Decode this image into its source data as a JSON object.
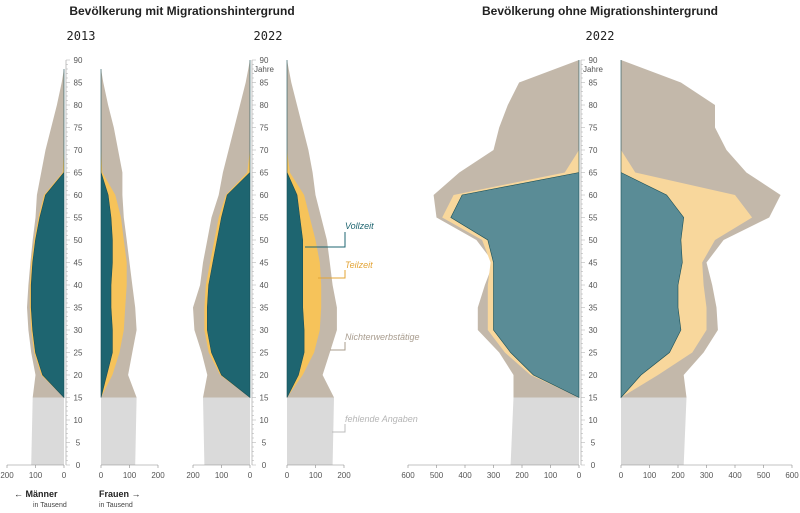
{
  "titles": {
    "left": "Bevölkerung mit Migrationshintergrund",
    "right": "Bevölkerung ohne Migrationshintergrund"
  },
  "legend": {
    "vollzeit": "Vollzeit",
    "teilzeit": "Teilzeit",
    "nichterwerb": "Nichterwerbstätige",
    "fehlend": "fehlende Angaben"
  },
  "age_unit": "Jahre",
  "sex_labels": {
    "male": "← Männer",
    "female": "Frauen →",
    "unit": "in Tausend"
  },
  "colors": {
    "vollzeit_left": "#1e6570",
    "vollzeit_right": "#5a8c96",
    "teilzeit_left": "#f6c35a",
    "teilzeit_right": "#f8d79c",
    "nichterwerb": "#c3b8aa",
    "fehlend": "#dadada"
  },
  "chart_data": [
    {
      "type": "area",
      "year": "2013",
      "age_ticks": [
        0,
        5,
        10,
        15,
        20,
        25,
        30,
        35,
        40,
        45,
        50,
        55,
        60,
        65,
        70,
        75,
        80,
        85,
        90
      ],
      "male_ticks": [
        200,
        100,
        0
      ],
      "female_ticks": [
        0,
        100,
        200
      ],
      "male": {
        "age": [
          0,
          15,
          20,
          25,
          30,
          35,
          40,
          45,
          50,
          55,
          60,
          65,
          70,
          75,
          80,
          85,
          88
        ],
        "vollzeit": [
          0,
          0,
          75,
          100,
          110,
          115,
          115,
          110,
          100,
          85,
          65,
          0,
          0,
          0,
          0,
          0,
          0
        ],
        "teilzeit": [
          0,
          0,
          80,
          105,
          115,
          120,
          120,
          115,
          105,
          90,
          70,
          5,
          0,
          0,
          0,
          0,
          0
        ],
        "total": [
          115,
          110,
          100,
          115,
          125,
          130,
          125,
          118,
          110,
          100,
          95,
          80,
          65,
          45,
          25,
          8,
          0
        ]
      },
      "female": {
        "age": [
          0,
          15,
          20,
          25,
          30,
          35,
          40,
          45,
          50,
          55,
          60,
          65,
          70,
          75,
          80,
          85,
          88
        ],
        "vollzeit": [
          0,
          0,
          20,
          40,
          40,
          35,
          35,
          40,
          40,
          35,
          25,
          0,
          0,
          0,
          0,
          0,
          0
        ],
        "teilzeit": [
          0,
          0,
          40,
          65,
          80,
          85,
          90,
          90,
          80,
          70,
          50,
          5,
          0,
          0,
          0,
          0,
          0
        ],
        "total": [
          120,
          125,
          95,
          110,
          125,
          120,
          110,
          100,
          90,
          80,
          75,
          75,
          60,
          45,
          25,
          8,
          0
        ]
      }
    },
    {
      "type": "area",
      "year": "2022",
      "age_ticks": [
        0,
        5,
        10,
        15,
        20,
        25,
        30,
        35,
        40,
        45,
        50,
        55,
        60,
        65,
        70,
        75,
        80,
        85,
        90
      ],
      "male_ticks": [
        200,
        100,
        0
      ],
      "female_ticks": [
        0,
        100,
        200
      ],
      "male": {
        "age": [
          0,
          15,
          20,
          25,
          30,
          35,
          40,
          45,
          50,
          55,
          60,
          65,
          70,
          75,
          80,
          85,
          90
        ],
        "vollzeit": [
          0,
          0,
          100,
          135,
          150,
          150,
          145,
          130,
          115,
          100,
          80,
          0,
          0,
          0,
          0,
          0,
          0
        ],
        "teilzeit": [
          0,
          0,
          105,
          145,
          160,
          160,
          155,
          140,
          125,
          110,
          85,
          10,
          0,
          0,
          0,
          0,
          0
        ],
        "total": [
          160,
          165,
          150,
          170,
          195,
          200,
          175,
          165,
          150,
          135,
          110,
          95,
          75,
          55,
          35,
          15,
          0
        ]
      },
      "female": {
        "age": [
          0,
          15,
          20,
          25,
          30,
          35,
          40,
          45,
          50,
          55,
          60,
          65,
          70,
          75,
          80,
          85,
          90
        ],
        "vollzeit": [
          0,
          0,
          40,
          60,
          60,
          55,
          55,
          55,
          55,
          45,
          35,
          0,
          0,
          0,
          0,
          0,
          0
        ],
        "teilzeit": [
          0,
          0,
          55,
          95,
          115,
          120,
          120,
          115,
          100,
          80,
          60,
          10,
          0,
          0,
          0,
          0,
          0
        ],
        "total": [
          160,
          165,
          125,
          150,
          175,
          175,
          160,
          150,
          140,
          120,
          100,
          90,
          75,
          55,
          35,
          15,
          0
        ]
      }
    },
    {
      "type": "area",
      "year": "2022",
      "age_ticks": [
        0,
        5,
        10,
        15,
        20,
        25,
        30,
        35,
        40,
        45,
        50,
        55,
        60,
        65,
        70,
        75,
        80,
        85,
        90
      ],
      "male_ticks": [
        600,
        500,
        400,
        300,
        200,
        100,
        0
      ],
      "female_ticks": [
        0,
        100,
        200,
        300,
        400,
        500,
        600
      ],
      "male": {
        "age": [
          0,
          15,
          20,
          25,
          30,
          35,
          40,
          45,
          50,
          55,
          60,
          65,
          70,
          75,
          80,
          85,
          90
        ],
        "vollzeit": [
          0,
          0,
          160,
          240,
          300,
          300,
          300,
          300,
          320,
          450,
          410,
          0,
          0,
          0,
          0,
          0,
          0
        ],
        "teilzeit": [
          0,
          0,
          170,
          260,
          320,
          320,
          320,
          310,
          340,
          480,
          440,
          50,
          0,
          0,
          0,
          0,
          0
        ],
        "total": [
          240,
          230,
          230,
          280,
          355,
          355,
          330,
          300,
          360,
          500,
          510,
          420,
          300,
          280,
          250,
          210,
          0
        ]
      },
      "female": {
        "age": [
          0,
          15,
          20,
          25,
          30,
          35,
          40,
          45,
          50,
          55,
          60,
          65,
          70,
          75,
          80,
          85,
          90
        ],
        "vollzeit": [
          0,
          0,
          70,
          170,
          210,
          200,
          200,
          215,
          210,
          220,
          160,
          0,
          0,
          0,
          0,
          0,
          0
        ],
        "teilzeit": [
          0,
          0,
          130,
          250,
          300,
          300,
          290,
          285,
          330,
          460,
          400,
          50,
          0,
          0,
          0,
          0,
          0
        ],
        "total": [
          220,
          230,
          220,
          290,
          340,
          335,
          320,
          300,
          360,
          520,
          560,
          440,
          370,
          330,
          330,
          210,
          0
        ]
      }
    }
  ]
}
